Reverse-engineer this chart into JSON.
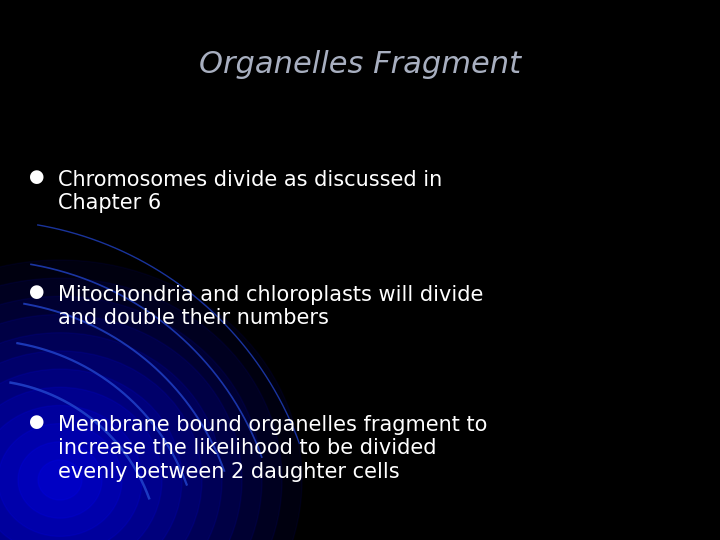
{
  "title": "Organelles Fragment",
  "title_color": "#a8afc0",
  "title_fontsize": 22,
  "background_color": "#000000",
  "bullet_color": "#ffffff",
  "bullet_fontsize": 15,
  "bullet_symbol": "●",
  "bullets": [
    [
      "Chromosomes divide as discussed in",
      "Chapter 6"
    ],
    [
      "Mitochondria and chloroplasts will divide",
      "and double their numbers"
    ],
    [
      "Membrane bound organelles fragment to",
      "increase the likelihood to be divided",
      "evenly between 2 daughter cells"
    ]
  ],
  "fig_width": 7.2,
  "fig_height": 5.4,
  "dpi": 100
}
